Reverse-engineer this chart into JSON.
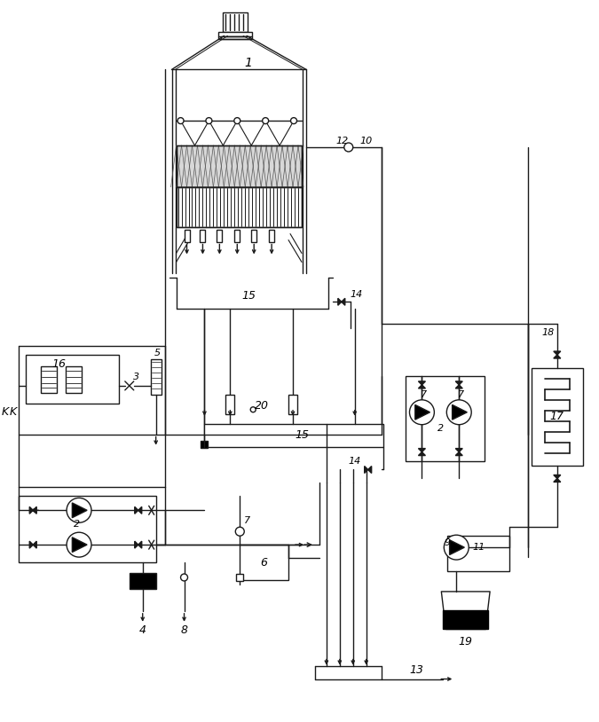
{
  "bg_color": "#ffffff",
  "line_color": "#1a1a1a",
  "line_width": 1.0,
  "figsize": [
    6.75,
    8.14
  ],
  "dpi": 100
}
